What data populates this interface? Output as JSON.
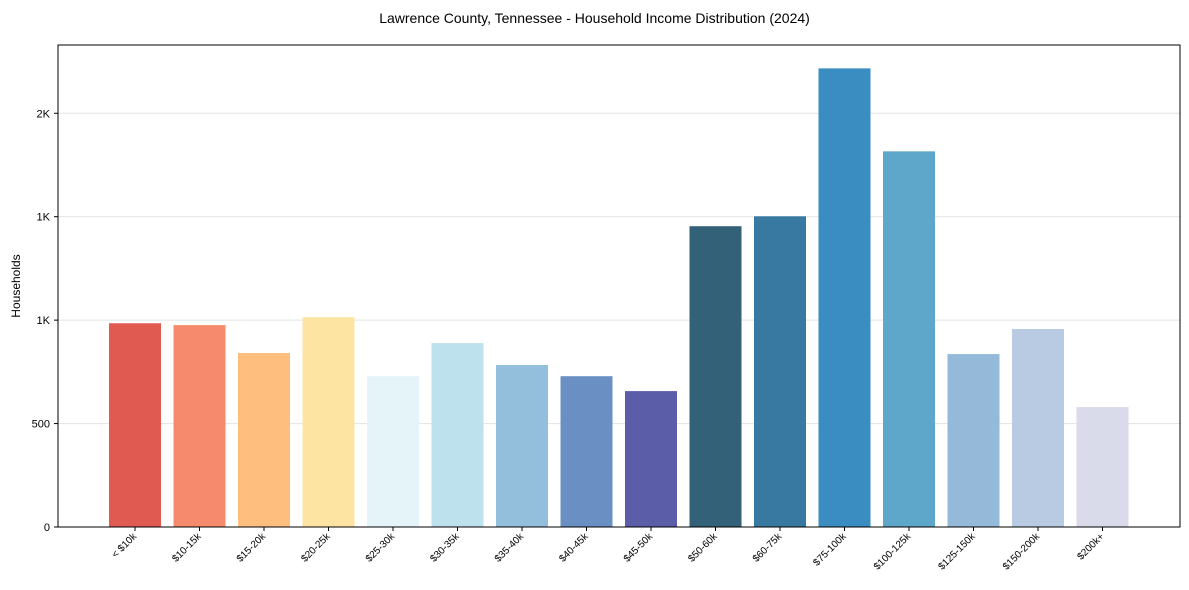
{
  "chart_data": {
    "type": "bar",
    "title": "Lawrence County, Tennessee - Household Income Distribution (2024)",
    "xlabel": "",
    "ylabel": "Households",
    "ylim": [
      0,
      2330
    ],
    "grid": "horizontal",
    "yticks": [
      0,
      500,
      1000,
      1500,
      2000
    ],
    "ytick_labels": [
      "0",
      "500",
      "1K",
      "1K",
      "2K"
    ],
    "categories": [
      "< $10k",
      "$10-15k",
      "$15-20k",
      "$20-25k",
      "$25-30k",
      "$30-35k",
      "$35-40k",
      "$40-45k",
      "$45-50k",
      "$50-60k",
      "$60-75k",
      "$75-100k",
      "$100-125k",
      "$125-150k",
      "$150-200k",
      "$200k+"
    ],
    "values": [
      985,
      976,
      841,
      1014,
      729,
      889,
      783,
      729,
      657,
      1454,
      1502,
      2217,
      1816,
      836,
      957,
      580
    ],
    "colors": [
      "#e05a52",
      "#f58b6c",
      "#fdbe7e",
      "#fee4a2",
      "#e5f4f8",
      "#bde1ed",
      "#93bfdc",
      "#6a90c3",
      "#5c5da9",
      "#336178",
      "#3779a1",
      "#3a8dc1",
      "#5ea6ca",
      "#94b9d9",
      "#b9cbe2",
      "#d9dbea"
    ]
  }
}
